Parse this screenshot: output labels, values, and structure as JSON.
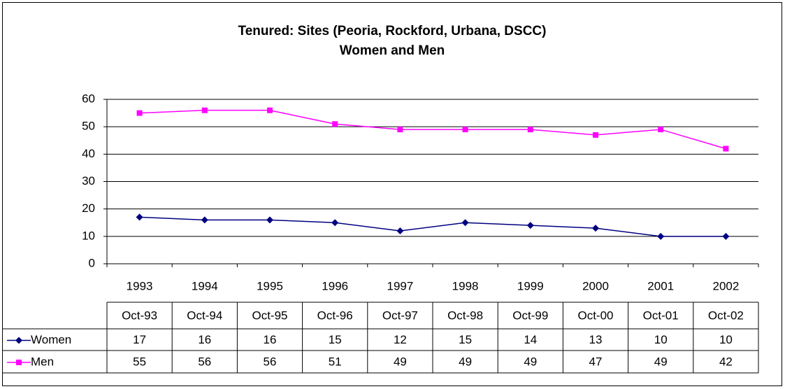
{
  "chart_data": {
    "type": "line",
    "title": "Tenured: Sites (Peoria, Rockford, Urbana, DSCC)",
    "subtitle": "Women and Men",
    "categories": [
      "1993",
      "1994",
      "1995",
      "1996",
      "1997",
      "1998",
      "1999",
      "2000",
      "2001",
      "2002"
    ],
    "table_headers": [
      "Oct-93",
      "Oct-94",
      "Oct-95",
      "Oct-96",
      "Oct-97",
      "Oct-98",
      "Oct-99",
      "Oct-00",
      "Oct-01",
      "Oct-02"
    ],
    "series": [
      {
        "name": "Women",
        "color": "#000080",
        "marker": "diamond",
        "values": [
          17,
          16,
          16,
          15,
          12,
          15,
          14,
          13,
          10,
          10
        ]
      },
      {
        "name": "Men",
        "color": "#ff00ff",
        "marker": "square",
        "values": [
          55,
          56,
          56,
          51,
          49,
          49,
          49,
          47,
          49,
          42
        ]
      }
    ],
    "ylim": [
      0,
      60
    ],
    "yticks": [
      0,
      10,
      20,
      30,
      40,
      50,
      60
    ],
    "grid": true
  }
}
